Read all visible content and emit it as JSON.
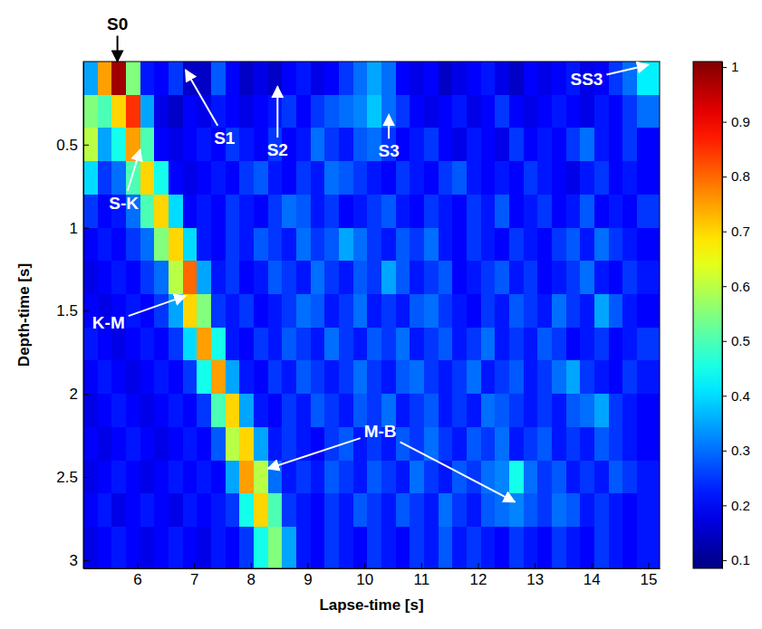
{
  "chart_data": {
    "type": "heatmap",
    "x_label": "Lapse-time [s]",
    "y_label": "Depth-time [s]",
    "xlim": [
      5.05,
      15.2
    ],
    "ylim": [
      0,
      3.05
    ],
    "xticks": [
      6,
      7,
      8,
      9,
      10,
      11,
      12,
      13,
      14,
      15
    ],
    "yticks": [
      0.5,
      1,
      1.5,
      2,
      2.5,
      3
    ],
    "color": "jet",
    "x_bins": [
      5.05,
      5.3,
      5.55,
      5.8,
      6.05,
      6.3,
      6.55,
      6.8,
      7.05,
      7.3,
      7.55,
      7.8,
      8.05,
      8.3,
      8.55,
      8.8,
      9.05,
      9.3,
      9.55,
      9.8,
      10.05,
      10.3,
      10.55,
      10.8,
      11.05,
      11.3,
      11.55,
      11.8,
      12.05,
      12.3,
      12.55,
      12.8,
      13.05,
      13.3,
      13.55,
      13.8,
      14.05,
      14.3,
      14.55,
      14.8,
      15.2
    ],
    "y_bins": [
      0,
      0.2,
      0.4,
      0.6,
      0.8,
      1.0,
      1.2,
      1.4,
      1.6,
      1.8,
      2.0,
      2.2,
      2.4,
      2.6,
      2.8,
      3.05
    ],
    "z": [
      [
        0.35,
        0.75,
        0.98,
        0.55,
        0.22,
        0.2,
        0.25,
        0.15,
        0.15,
        0.28,
        0.2,
        0.15,
        0.18,
        0.15,
        0.2,
        0.22,
        0.18,
        0.2,
        0.25,
        0.3,
        0.35,
        0.3,
        0.2,
        0.18,
        0.2,
        0.15,
        0.18,
        0.2,
        0.22,
        0.18,
        0.15,
        0.2,
        0.18,
        0.2,
        0.22,
        0.18,
        0.2,
        0.25,
        0.3,
        0.42
      ],
      [
        0.55,
        0.5,
        0.7,
        0.85,
        0.35,
        0.18,
        0.15,
        0.2,
        0.18,
        0.22,
        0.2,
        0.18,
        0.2,
        0.22,
        0.25,
        0.2,
        0.25,
        0.28,
        0.3,
        0.32,
        0.38,
        0.3,
        0.25,
        0.2,
        0.18,
        0.2,
        0.22,
        0.18,
        0.2,
        0.25,
        0.2,
        0.18,
        0.2,
        0.22,
        0.2,
        0.18,
        0.22,
        0.2,
        0.25,
        0.3
      ],
      [
        0.6,
        0.35,
        0.45,
        0.75,
        0.5,
        0.2,
        0.18,
        0.2,
        0.22,
        0.2,
        0.25,
        0.22,
        0.2,
        0.25,
        0.2,
        0.22,
        0.3,
        0.25,
        0.22,
        0.28,
        0.3,
        0.25,
        0.2,
        0.22,
        0.25,
        0.2,
        0.18,
        0.22,
        0.2,
        0.18,
        0.25,
        0.2,
        0.22,
        0.2,
        0.25,
        0.3,
        0.22,
        0.2,
        0.25,
        0.2
      ],
      [
        0.4,
        0.25,
        0.3,
        0.5,
        0.7,
        0.45,
        0.2,
        0.18,
        0.2,
        0.22,
        0.2,
        0.25,
        0.28,
        0.22,
        0.2,
        0.25,
        0.22,
        0.3,
        0.28,
        0.25,
        0.22,
        0.2,
        0.25,
        0.22,
        0.2,
        0.25,
        0.28,
        0.22,
        0.2,
        0.22,
        0.2,
        0.25,
        0.22,
        0.2,
        0.18,
        0.22,
        0.25,
        0.2,
        0.22,
        0.2
      ],
      [
        0.25,
        0.2,
        0.22,
        0.3,
        0.5,
        0.7,
        0.4,
        0.2,
        0.22,
        0.2,
        0.25,
        0.22,
        0.2,
        0.25,
        0.3,
        0.28,
        0.22,
        0.25,
        0.2,
        0.22,
        0.25,
        0.28,
        0.22,
        0.2,
        0.25,
        0.22,
        0.2,
        0.25,
        0.22,
        0.28,
        0.2,
        0.22,
        0.25,
        0.2,
        0.22,
        0.28,
        0.2,
        0.22,
        0.2,
        0.25
      ],
      [
        0.2,
        0.22,
        0.2,
        0.25,
        0.3,
        0.55,
        0.7,
        0.4,
        0.22,
        0.2,
        0.25,
        0.22,
        0.28,
        0.25,
        0.22,
        0.3,
        0.25,
        0.28,
        0.35,
        0.3,
        0.25,
        0.22,
        0.28,
        0.25,
        0.3,
        0.22,
        0.2,
        0.25,
        0.22,
        0.2,
        0.25,
        0.22,
        0.2,
        0.25,
        0.28,
        0.22,
        0.3,
        0.25,
        0.22,
        0.2
      ],
      [
        0.18,
        0.2,
        0.22,
        0.2,
        0.25,
        0.3,
        0.6,
        0.8,
        0.35,
        0.22,
        0.25,
        0.2,
        0.22,
        0.28,
        0.25,
        0.22,
        0.3,
        0.25,
        0.22,
        0.28,
        0.25,
        0.35,
        0.28,
        0.22,
        0.25,
        0.28,
        0.2,
        0.22,
        0.25,
        0.28,
        0.22,
        0.25,
        0.2,
        0.22,
        0.25,
        0.3,
        0.22,
        0.2,
        0.25,
        0.22
      ],
      [
        0.2,
        0.18,
        0.2,
        0.22,
        0.2,
        0.25,
        0.35,
        0.7,
        0.55,
        0.25,
        0.22,
        0.25,
        0.2,
        0.22,
        0.25,
        0.3,
        0.28,
        0.22,
        0.25,
        0.3,
        0.22,
        0.25,
        0.22,
        0.28,
        0.3,
        0.25,
        0.22,
        0.2,
        0.25,
        0.22,
        0.28,
        0.25,
        0.22,
        0.3,
        0.25,
        0.22,
        0.35,
        0.28,
        0.22,
        0.2
      ],
      [
        0.22,
        0.2,
        0.18,
        0.2,
        0.22,
        0.2,
        0.25,
        0.4,
        0.75,
        0.45,
        0.22,
        0.2,
        0.25,
        0.22,
        0.28,
        0.25,
        0.22,
        0.3,
        0.25,
        0.22,
        0.28,
        0.25,
        0.3,
        0.22,
        0.25,
        0.28,
        0.22,
        0.25,
        0.3,
        0.22,
        0.25,
        0.22,
        0.28,
        0.25,
        0.2,
        0.22,
        0.25,
        0.2,
        0.22,
        0.25
      ],
      [
        0.2,
        0.22,
        0.2,
        0.18,
        0.2,
        0.22,
        0.2,
        0.25,
        0.45,
        0.75,
        0.35,
        0.22,
        0.2,
        0.25,
        0.22,
        0.28,
        0.25,
        0.22,
        0.25,
        0.3,
        0.25,
        0.22,
        0.28,
        0.3,
        0.25,
        0.22,
        0.25,
        0.3,
        0.22,
        0.25,
        0.28,
        0.22,
        0.25,
        0.3,
        0.35,
        0.25,
        0.22,
        0.2,
        0.25,
        0.22
      ],
      [
        0.18,
        0.2,
        0.22,
        0.2,
        0.18,
        0.2,
        0.22,
        0.2,
        0.25,
        0.5,
        0.7,
        0.35,
        0.22,
        0.2,
        0.25,
        0.22,
        0.28,
        0.25,
        0.22,
        0.28,
        0.25,
        0.3,
        0.22,
        0.25,
        0.28,
        0.22,
        0.25,
        0.22,
        0.3,
        0.28,
        0.25,
        0.22,
        0.25,
        0.22,
        0.28,
        0.3,
        0.35,
        0.25,
        0.22,
        0.2
      ],
      [
        0.2,
        0.18,
        0.2,
        0.22,
        0.2,
        0.18,
        0.2,
        0.22,
        0.2,
        0.28,
        0.6,
        0.7,
        0.35,
        0.22,
        0.25,
        0.22,
        0.2,
        0.25,
        0.28,
        0.22,
        0.25,
        0.22,
        0.28,
        0.25,
        0.3,
        0.25,
        0.22,
        0.28,
        0.25,
        0.3,
        0.22,
        0.25,
        0.28,
        0.22,
        0.25,
        0.22,
        0.28,
        0.25,
        0.22,
        0.2
      ],
      [
        0.18,
        0.2,
        0.22,
        0.2,
        0.18,
        0.2,
        0.22,
        0.2,
        0.22,
        0.2,
        0.35,
        0.75,
        0.6,
        0.3,
        0.22,
        0.25,
        0.22,
        0.28,
        0.25,
        0.22,
        0.28,
        0.25,
        0.22,
        0.3,
        0.25,
        0.22,
        0.28,
        0.25,
        0.3,
        0.32,
        0.45,
        0.3,
        0.25,
        0.28,
        0.22,
        0.25,
        0.22,
        0.28,
        0.25,
        0.22
      ],
      [
        0.2,
        0.22,
        0.18,
        0.2,
        0.22,
        0.2,
        0.18,
        0.22,
        0.2,
        0.22,
        0.25,
        0.45,
        0.7,
        0.5,
        0.25,
        0.22,
        0.2,
        0.25,
        0.22,
        0.28,
        0.25,
        0.22,
        0.28,
        0.25,
        0.22,
        0.3,
        0.25,
        0.22,
        0.28,
        0.3,
        0.32,
        0.28,
        0.25,
        0.3,
        0.28,
        0.22,
        0.25,
        0.22,
        0.2,
        0.22
      ],
      [
        0.18,
        0.2,
        0.22,
        0.2,
        0.18,
        0.2,
        0.22,
        0.2,
        0.18,
        0.22,
        0.2,
        0.25,
        0.45,
        0.55,
        0.35,
        0.22,
        0.2,
        0.25,
        0.22,
        0.2,
        0.25,
        0.22,
        0.2,
        0.25,
        0.22,
        0.28,
        0.22,
        0.25,
        0.22,
        0.2,
        0.25,
        0.22,
        0.2,
        0.25,
        0.22,
        0.2,
        0.25,
        0.22,
        0.2,
        0.22
      ]
    ],
    "colorbar": {
      "range": [
        0.085,
        1.01
      ],
      "ticks": [
        0.1,
        0.2,
        0.3,
        0.4,
        0.5,
        0.6,
        0.7,
        0.8,
        0.9,
        1
      ]
    },
    "annotations": [
      {
        "text": "S0",
        "points": [
          [
            5.65,
            0.0
          ]
        ]
      },
      {
        "text": "S1",
        "points": [
          [
            6.85,
            0.05
          ]
        ]
      },
      {
        "text": "S2",
        "points": [
          [
            8.47,
            0.15
          ]
        ]
      },
      {
        "text": "S3",
        "points": [
          [
            10.43,
            0.32
          ]
        ]
      },
      {
        "text": "SS3",
        "points": [
          [
            15.0,
            0.02
          ]
        ]
      },
      {
        "text": "S-K",
        "points": [
          [
            6.05,
            0.53
          ]
        ]
      },
      {
        "text": "K-M",
        "points": [
          [
            6.85,
            1.41
          ]
        ]
      },
      {
        "text": "M-B",
        "points": [
          [
            8.3,
            2.45
          ],
          [
            12.65,
            2.65
          ]
        ]
      }
    ]
  }
}
